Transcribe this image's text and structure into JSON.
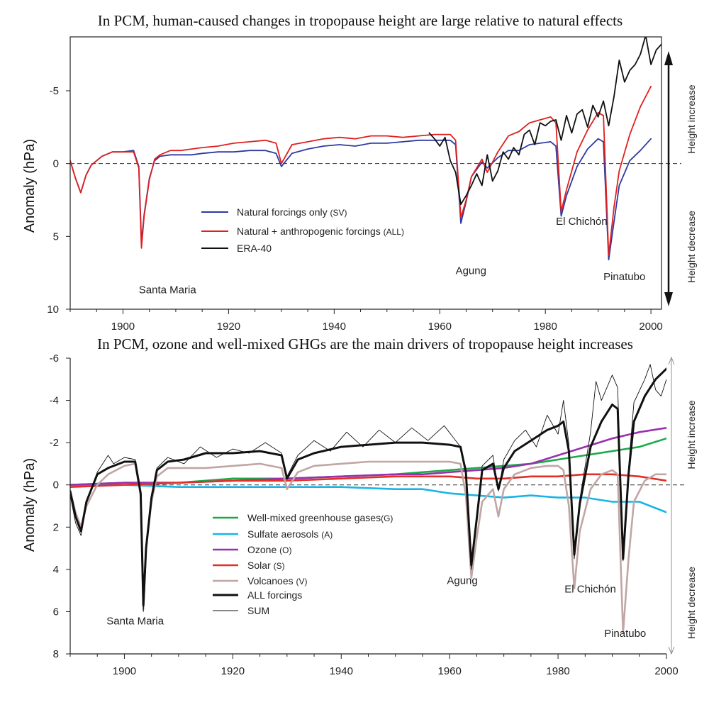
{
  "chart_data": [
    {
      "type": "line",
      "title": "In PCM, human-caused changes in tropopause height are large relative to natural effects",
      "xlabel": "",
      "ylabel": "Anomaly (hPa)",
      "xlim": [
        1890,
        2002
      ],
      "ylim": [
        10,
        -8.7
      ],
      "y_inverted": true,
      "xticks": [
        1900,
        1920,
        1940,
        1960,
        1980,
        2000
      ],
      "yticks": [
        10,
        5,
        0,
        -5
      ],
      "ytick_labels": [
        "10",
        "5",
        "0",
        "-5"
      ],
      "zero_line": "dashed",
      "grid": false,
      "legend_position": "center-left",
      "side_labels": {
        "top": "Height increase",
        "bottom": "Height decrease"
      },
      "annotations": [
        {
          "text": "Santa Maria",
          "x": 1903,
          "y": 8.9
        },
        {
          "text": "Agung",
          "x": 1963,
          "y": 7.6
        },
        {
          "text": "El Chichón",
          "x": 1982,
          "y": 4.2
        },
        {
          "text": "Pinatubo",
          "x": 1991,
          "y": 8.0
        }
      ],
      "series": [
        {
          "name": "Natural forcings only (SV)",
          "legend_label": "Natural forcings only",
          "legend_code": "(SV)",
          "color": "#2d3aa0",
          "width": 1.8,
          "x": [
            1890,
            1891,
            1892,
            1893,
            1894,
            1896,
            1898,
            1900,
            1902,
            1903,
            1903.5,
            1904,
            1905,
            1906,
            1907,
            1909,
            1911,
            1913,
            1915,
            1918,
            1921,
            1924,
            1927,
            1929,
            1930,
            1932,
            1935,
            1938,
            1941,
            1944,
            1947,
            1950,
            1953,
            1956,
            1959,
            1962,
            1963,
            1964,
            1965,
            1966,
            1968,
            1969,
            1971,
            1973,
            1975,
            1977,
            1979,
            1981,
            1982,
            1983,
            1984,
            1986,
            1988,
            1990,
            1991,
            1992,
            1993,
            1994,
            1996,
            1998,
            2000
          ],
          "y": [
            -0.2,
            1.0,
            2.0,
            0.8,
            0.1,
            -0.5,
            -0.8,
            -0.8,
            -0.9,
            0.2,
            5.4,
            3.5,
            1.0,
            -0.2,
            -0.5,
            -0.6,
            -0.6,
            -0.6,
            -0.7,
            -0.8,
            -0.8,
            -0.9,
            -0.9,
            -0.7,
            0.2,
            -0.7,
            -1.0,
            -1.2,
            -1.3,
            -1.2,
            -1.4,
            -1.4,
            -1.5,
            -1.6,
            -1.6,
            -1.6,
            -1.3,
            4.1,
            2.6,
            0.9,
            -0.1,
            0.3,
            -0.4,
            -0.9,
            -0.9,
            -1.3,
            -1.4,
            -1.5,
            -1.2,
            3.6,
            2.2,
            0.2,
            -1.0,
            -1.7,
            -1.5,
            6.6,
            4.0,
            1.5,
            -0.2,
            -0.9,
            -1.7
          ]
        },
        {
          "name": "Natural + anthropogenic forcings (ALL)",
          "legend_label": "Natural + anthropogenic forcings",
          "legend_code": "(ALL)",
          "color": "#e02020",
          "width": 1.8,
          "x": [
            1890,
            1891,
            1892,
            1893,
            1894,
            1896,
            1898,
            1900,
            1902,
            1903,
            1903.5,
            1904,
            1905,
            1906,
            1907,
            1909,
            1911,
            1913,
            1915,
            1918,
            1921,
            1924,
            1927,
            1929,
            1930,
            1932,
            1935,
            1938,
            1941,
            1944,
            1947,
            1950,
            1953,
            1956,
            1959,
            1962,
            1963,
            1964,
            1965,
            1966,
            1968,
            1969,
            1971,
            1973,
            1975,
            1977,
            1979,
            1981,
            1982,
            1983,
            1984,
            1986,
            1988,
            1990,
            1991,
            1992,
            1993,
            1994,
            1996,
            1998,
            2000
          ],
          "y": [
            -0.2,
            1.0,
            2.0,
            0.8,
            0.1,
            -0.5,
            -0.8,
            -0.8,
            -0.8,
            0.3,
            5.8,
            3.6,
            1.1,
            -0.3,
            -0.6,
            -0.9,
            -0.9,
            -1.0,
            -1.1,
            -1.2,
            -1.4,
            -1.5,
            -1.6,
            -1.4,
            0.0,
            -1.3,
            -1.5,
            -1.7,
            -1.8,
            -1.7,
            -1.9,
            -1.9,
            -1.8,
            -1.9,
            -2.0,
            -2.0,
            -1.6,
            3.7,
            2.5,
            0.9,
            -0.3,
            0.6,
            -0.8,
            -1.9,
            -2.2,
            -2.8,
            -3.0,
            -3.2,
            -2.8,
            3.3,
            1.8,
            -0.8,
            -2.3,
            -3.5,
            -3.3,
            6.3,
            3.0,
            0.5,
            -2.0,
            -3.9,
            -5.3
          ]
        },
        {
          "name": "ERA-40",
          "legend_label": "ERA-40",
          "legend_code": "",
          "color": "#111111",
          "width": 1.8,
          "x": [
            1958,
            1959,
            1960,
            1961,
            1962,
            1963,
            1964,
            1965,
            1966,
            1967,
            1968,
            1969,
            1970,
            1971,
            1972,
            1973,
            1974,
            1975,
            1976,
            1977,
            1978,
            1979,
            1980,
            1981,
            1982,
            1983,
            1984,
            1985,
            1986,
            1987,
            1988,
            1989,
            1990,
            1991,
            1992,
            1993,
            1994,
            1995,
            1996,
            1997,
            1998,
            1999,
            2000,
            2001,
            2002
          ],
          "y": [
            -2.1,
            -1.7,
            -1.2,
            -1.8,
            -0.2,
            0.6,
            2.8,
            2.2,
            1.5,
            0.7,
            1.5,
            -0.6,
            1.2,
            0.5,
            -0.8,
            -0.3,
            -1.1,
            -0.6,
            -2.0,
            -2.3,
            -1.3,
            -2.8,
            -2.6,
            -2.9,
            -3.0,
            -1.6,
            -3.3,
            -2.1,
            -3.4,
            -3.7,
            -2.5,
            -4.0,
            -3.2,
            -4.3,
            -2.6,
            -4.6,
            -7.1,
            -5.6,
            -6.4,
            -6.8,
            -7.5,
            -8.8,
            -6.8,
            -7.8,
            -8.2
          ]
        }
      ]
    },
    {
      "type": "line",
      "title": "In PCM, ozone and well-mixed GHGs are the main drivers of tropopause height increases",
      "xlabel": "",
      "ylabel": "Anomaly (hPa)",
      "xlim": [
        1890,
        2000
      ],
      "ylim": [
        8,
        -6
      ],
      "y_inverted": true,
      "xticks": [
        1900,
        1920,
        1940,
        1960,
        1980,
        2000
      ],
      "yticks": [
        8,
        6,
        4,
        2,
        0,
        -2,
        -4,
        -6
      ],
      "ytick_labels": [
        "8",
        "6",
        "4",
        "2",
        "0",
        "-2",
        "-4",
        "-6"
      ],
      "zero_line": "dashed",
      "grid": false,
      "legend_position": "center-left",
      "side_labels": {
        "top": "Height increase",
        "bottom": "Height decrease"
      },
      "annotations": [
        {
          "text": "Santa Maria",
          "x": 1896.7,
          "y": 6.6
        },
        {
          "text": "Agung",
          "x": 1959.5,
          "y": 4.7
        },
        {
          "text": "El Chichón",
          "x": 1981.2,
          "y": 5.1
        },
        {
          "text": "Pinatubo",
          "x": 1988.5,
          "y": 7.2
        }
      ],
      "series": [
        {
          "name": "Well-mixed greenhouse gases (G)",
          "legend_label": "Well-mixed greenhouse gases",
          "legend_code": "(G)",
          "color": "#1aaa48",
          "width": 2.6,
          "x": [
            1890,
            1900,
            1910,
            1920,
            1930,
            1940,
            1950,
            1955,
            1960,
            1965,
            1970,
            1975,
            1980,
            1985,
            1990,
            1995,
            2000
          ],
          "y": [
            0.0,
            -0.1,
            -0.1,
            -0.3,
            -0.3,
            -0.4,
            -0.5,
            -0.6,
            -0.7,
            -0.8,
            -0.9,
            -1.0,
            -1.2,
            -1.4,
            -1.6,
            -1.8,
            -2.2
          ]
        },
        {
          "name": "Sulfate aerosols (A)",
          "legend_label": "Sulfate aerosols",
          "legend_code": "(A)",
          "color": "#19b4e6",
          "width": 2.6,
          "x": [
            1890,
            1900,
            1910,
            1920,
            1930,
            1940,
            1950,
            1955,
            1960,
            1965,
            1970,
            1975,
            1980,
            1985,
            1990,
            1995,
            2000
          ],
          "y": [
            0.0,
            0.0,
            0.1,
            0.1,
            0.1,
            0.1,
            0.2,
            0.2,
            0.4,
            0.5,
            0.6,
            0.5,
            0.6,
            0.6,
            0.8,
            0.8,
            1.3
          ]
        },
        {
          "name": "Ozone (O)",
          "legend_label": "Ozone",
          "legend_code": "(O)",
          "color": "#9b2fae",
          "width": 2.6,
          "x": [
            1890,
            1900,
            1910,
            1920,
            1930,
            1940,
            1950,
            1955,
            1960,
            1965,
            1970,
            1975,
            1980,
            1985,
            1990,
            1995,
            2000
          ],
          "y": [
            0.0,
            -0.1,
            -0.1,
            -0.2,
            -0.3,
            -0.4,
            -0.5,
            -0.5,
            -0.6,
            -0.7,
            -0.8,
            -1.0,
            -1.4,
            -1.8,
            -2.2,
            -2.5,
            -2.7
          ]
        },
        {
          "name": "Solar (S)",
          "legend_label": "Solar",
          "legend_code": "(S)",
          "color": "#e03028",
          "width": 2.6,
          "x": [
            1890,
            1900,
            1910,
            1920,
            1930,
            1940,
            1950,
            1955,
            1960,
            1965,
            1970,
            1975,
            1980,
            1985,
            1990,
            1995,
            2000
          ],
          "y": [
            0.1,
            0.0,
            -0.1,
            -0.2,
            -0.2,
            -0.3,
            -0.4,
            -0.4,
            -0.4,
            -0.3,
            -0.3,
            -0.4,
            -0.4,
            -0.5,
            -0.5,
            -0.4,
            -0.2
          ]
        },
        {
          "name": "Volcanoes (V)",
          "legend_label": "Volcanoes",
          "legend_code": "(V)",
          "color": "#c0a6a4",
          "width": 2.6,
          "x": [
            1890,
            1891,
            1892,
            1893,
            1895,
            1897,
            1900,
            1902,
            1903,
            1903.5,
            1904,
            1905,
            1906,
            1908,
            1911,
            1915,
            1920,
            1925,
            1929,
            1930,
            1932,
            1935,
            1940,
            1945,
            1950,
            1955,
            1960,
            1962,
            1963,
            1964,
            1965,
            1966,
            1968,
            1969,
            1970,
            1972,
            1975,
            1978,
            1980,
            1981,
            1982,
            1983,
            1984,
            1986,
            1988,
            1990,
            1991,
            1992,
            1993,
            1994,
            1996,
            1998,
            2000
          ],
          "y": [
            0.3,
            1.3,
            2.0,
            1.0,
            0.0,
            -0.5,
            -0.9,
            -1.0,
            0.5,
            5.9,
            3.0,
            0.8,
            -0.4,
            -0.8,
            -0.8,
            -0.8,
            -0.9,
            -1.0,
            -0.8,
            0.2,
            -0.6,
            -0.9,
            -1.0,
            -1.1,
            -1.1,
            -1.1,
            -1.1,
            -1.0,
            0.5,
            4.4,
            2.5,
            0.8,
            0.2,
            1.5,
            0.2,
            -0.5,
            -0.8,
            -0.9,
            -0.9,
            -0.7,
            1.0,
            4.9,
            2.2,
            0.2,
            -0.5,
            -0.7,
            -0.5,
            7.0,
            3.5,
            0.8,
            -0.2,
            -0.5,
            -0.5
          ]
        },
        {
          "name": "ALL forcings",
          "legend_label": "ALL forcings",
          "legend_code": "",
          "color": "#111111",
          "width": 3.0,
          "x": [
            1890,
            1891,
            1892,
            1893,
            1895,
            1897,
            1900,
            1902,
            1903,
            1903.5,
            1904,
            1905,
            1906,
            1908,
            1911,
            1915,
            1920,
            1925,
            1929,
            1930,
            1932,
            1935,
            1940,
            1945,
            1950,
            1955,
            1960,
            1962,
            1963,
            1964,
            1965,
            1966,
            1968,
            1969,
            1970,
            1972,
            1975,
            1978,
            1980,
            1981,
            1982,
            1983,
            1984,
            1986,
            1988,
            1990,
            1991,
            1992,
            1993,
            1994,
            1996,
            1998,
            2000
          ],
          "y": [
            0.3,
            1.5,
            2.2,
            0.8,
            -0.5,
            -0.8,
            -1.1,
            -1.1,
            0.4,
            5.7,
            3.0,
            0.6,
            -0.7,
            -1.1,
            -1.2,
            -1.5,
            -1.5,
            -1.6,
            -1.4,
            -0.3,
            -1.2,
            -1.5,
            -1.8,
            -1.9,
            -2.0,
            -2.0,
            -1.9,
            -1.8,
            -0.6,
            3.8,
            1.6,
            -0.7,
            -1.0,
            0.2,
            -0.8,
            -1.6,
            -2.1,
            -2.6,
            -2.8,
            -3.0,
            -1.6,
            3.3,
            0.9,
            -1.8,
            -3.0,
            -3.8,
            -3.6,
            3.5,
            -0.5,
            -3.0,
            -4.2,
            -5.0,
            -5.5
          ]
        },
        {
          "name": "SUM",
          "legend_label": "SUM",
          "legend_code": "",
          "color": "#111111",
          "width": 0.9,
          "x": [
            1890,
            1891,
            1892,
            1893,
            1895,
            1897,
            1898,
            1900,
            1902,
            1903,
            1903.5,
            1904,
            1905,
            1906,
            1908,
            1911,
            1914,
            1917,
            1920,
            1923,
            1926,
            1929,
            1930,
            1932,
            1935,
            1938,
            1941,
            1944,
            1947,
            1950,
            1953,
            1956,
            1959,
            1962,
            1963,
            1964,
            1965,
            1966,
            1968,
            1969,
            1970,
            1972,
            1974,
            1976,
            1978,
            1980,
            1981,
            1982,
            1983,
            1984,
            1986,
            1987,
            1988,
            1990,
            1991,
            1992,
            1993,
            1994,
            1996,
            1997,
            1998,
            1999,
            2000
          ],
          "y": [
            0.5,
            1.8,
            2.4,
            0.8,
            -0.6,
            -1.4,
            -1.0,
            -1.3,
            -1.2,
            0.6,
            6.0,
            3.2,
            0.5,
            -0.8,
            -1.3,
            -1.0,
            -1.8,
            -1.3,
            -1.7,
            -1.5,
            -2.0,
            -1.5,
            -0.4,
            -1.4,
            -2.1,
            -1.6,
            -2.5,
            -1.8,
            -2.6,
            -2.0,
            -2.7,
            -2.1,
            -2.8,
            -1.8,
            -0.8,
            4.0,
            1.4,
            -0.9,
            -1.4,
            0.3,
            -1.2,
            -2.1,
            -2.6,
            -1.8,
            -3.3,
            -2.4,
            -4.0,
            -1.9,
            3.5,
            0.7,
            -2.5,
            -4.9,
            -4.0,
            -5.2,
            -4.6,
            3.6,
            -0.8,
            -3.9,
            -5.0,
            -5.7,
            -4.5,
            -4.2,
            -5.0
          ]
        }
      ]
    }
  ]
}
